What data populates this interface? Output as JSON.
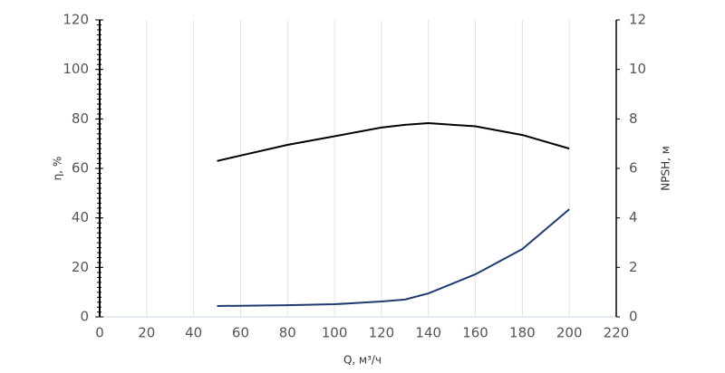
{
  "chart_data": {
    "type": "line",
    "x_label": "Q, м³/ч",
    "y_label": "η, %",
    "y2_label": "NPSH, м",
    "x": [
      50,
      60,
      80,
      100,
      120,
      130,
      140,
      160,
      180,
      200
    ],
    "series": [
      {
        "name": "η",
        "color": "#000000",
        "values": [
          63,
          65.2,
          69.5,
          73,
          76.5,
          77.6,
          78.3,
          77,
          73.5,
          68
        ]
      },
      {
        "name": "NPSH",
        "color": "#1f3a6e",
        "axis": "y2",
        "values": [
          0.44,
          0.45,
          0.47,
          0.51,
          0.62,
          0.7,
          0.95,
          1.72,
          2.74,
          4.35
        ]
      }
    ],
    "xlim": [
      0,
      220
    ],
    "xticks": [
      0,
      20,
      40,
      60,
      80,
      100,
      120,
      140,
      160,
      180,
      200,
      220
    ],
    "ylim": [
      0,
      120
    ],
    "yticks": [
      0,
      20,
      40,
      60,
      80,
      100,
      120
    ],
    "y2lim": [
      0,
      12
    ],
    "y2ticks": [
      0,
      2,
      4,
      6,
      8,
      10,
      12
    ],
    "grid": true
  }
}
